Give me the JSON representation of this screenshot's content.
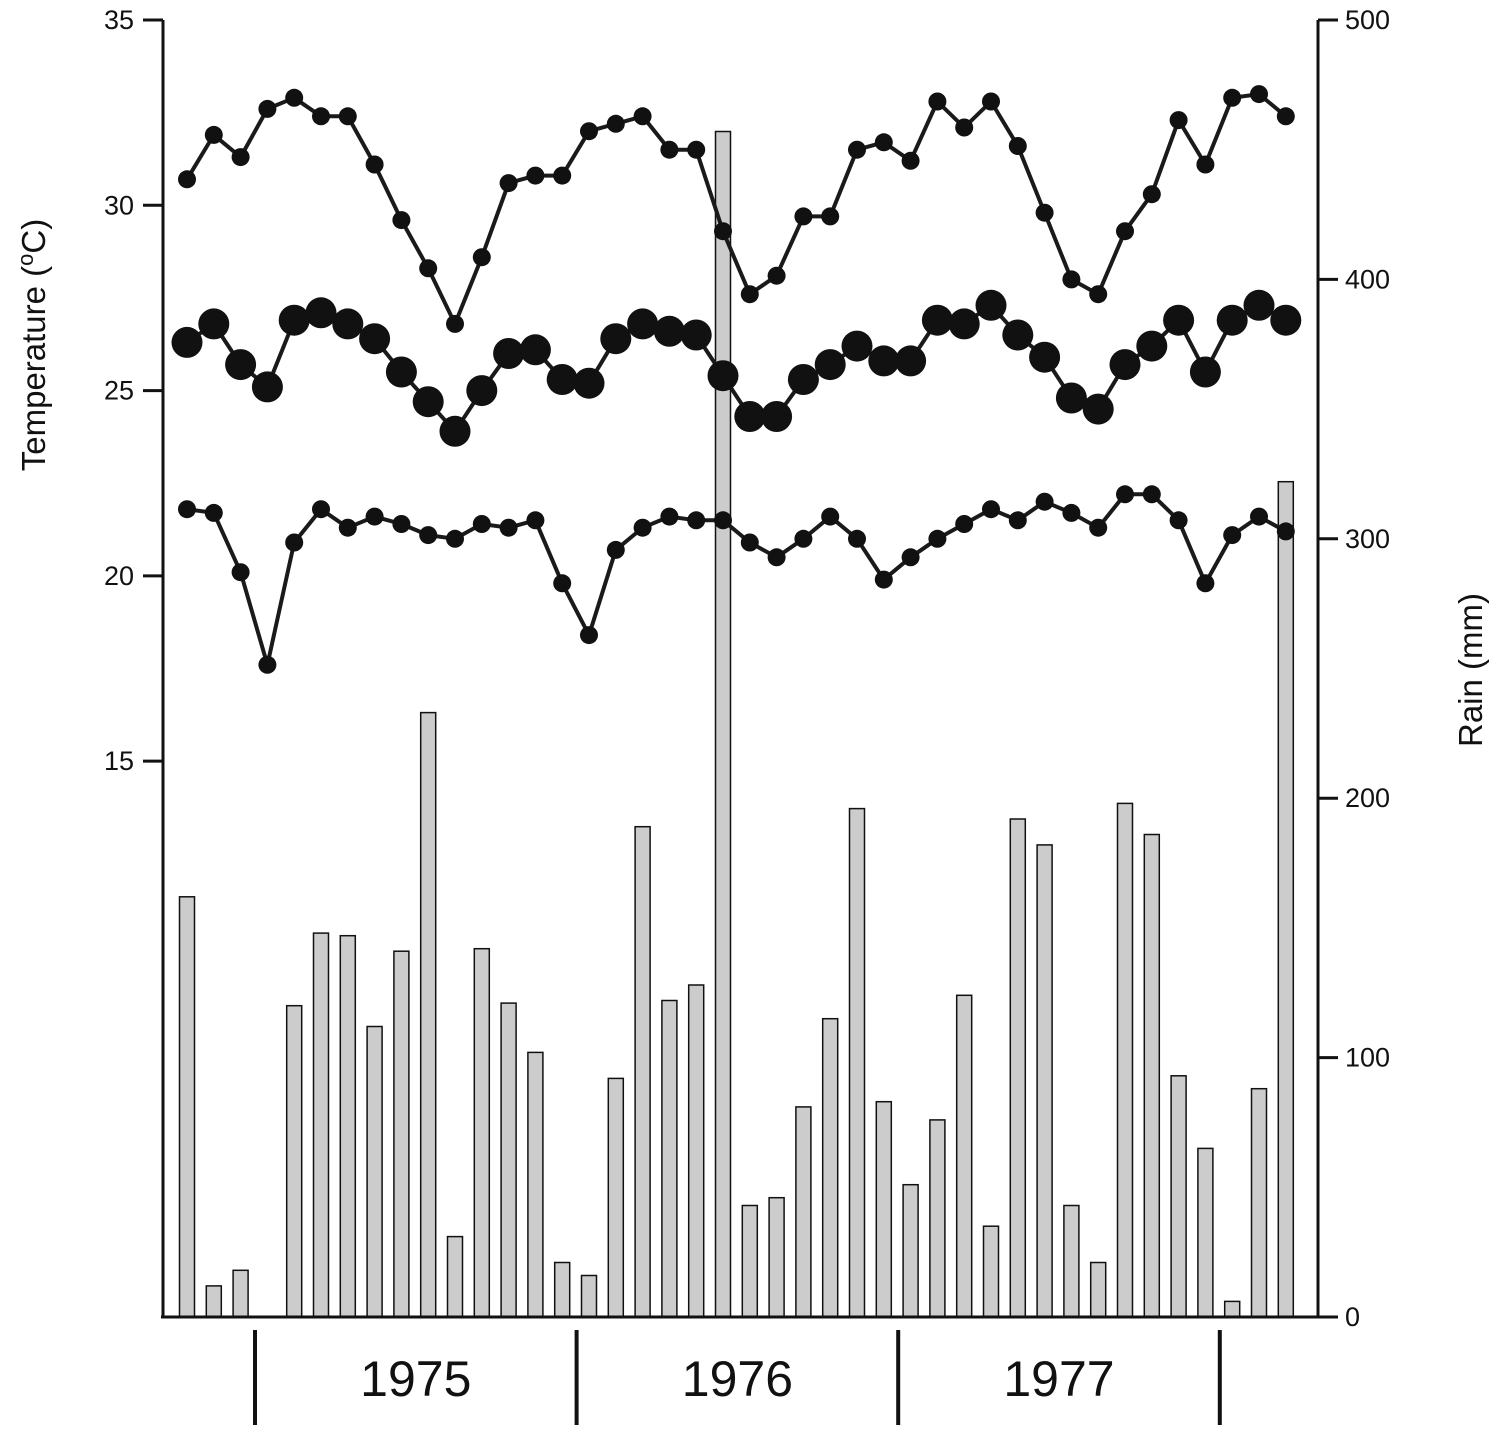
{
  "chart_data": {
    "type": "bar+line",
    "title": "",
    "ylabel_left": "Temperature (°C)",
    "ylabel_right": "Rain (mm)",
    "ylim_left": [
      0,
      35
    ],
    "yticks_left": [
      15,
      20,
      25,
      30,
      35
    ],
    "ylim_right": [
      0,
      500
    ],
    "yticks_right": [
      0,
      100,
      200,
      300,
      400,
      500
    ],
    "grid": false,
    "years": [
      "1975",
      "1976",
      "1977"
    ],
    "colors": {
      "bar_fill": "#cccccc",
      "bar_stroke": "#111111",
      "line": "#1a1a1a",
      "marker": "#111111"
    },
    "series": [
      {
        "type": "line",
        "axis": "left",
        "values": [
          30.7,
          31.9,
          31.3,
          32.6,
          32.9,
          32.4,
          32.4,
          31.1,
          29.6,
          28.3,
          26.8,
          28.6,
          30.6,
          30.8,
          30.8,
          32.0,
          32.2,
          32.4,
          31.5,
          31.5,
          29.3,
          27.6,
          28.1,
          29.7,
          29.7,
          31.5,
          31.7,
          31.2,
          32.8,
          32.1,
          32.8,
          31.6,
          29.8,
          28.0,
          27.6,
          29.3,
          30.3,
          32.3,
          31.1,
          32.9,
          33.0,
          32.4
        ]
      },
      {
        "type": "line",
        "axis": "left",
        "values": [
          26.3,
          26.8,
          25.7,
          25.1,
          26.9,
          27.1,
          26.8,
          26.4,
          25.5,
          24.7,
          23.9,
          25.0,
          26.0,
          26.1,
          25.3,
          25.2,
          26.4,
          26.8,
          26.6,
          26.5,
          25.4,
          24.3,
          24.3,
          25.3,
          25.7,
          26.2,
          25.8,
          25.8,
          26.9,
          26.8,
          27.3,
          26.5,
          25.9,
          24.8,
          24.5,
          25.7,
          26.2,
          26.9,
          25.5,
          26.9,
          27.3,
          26.9
        ]
      },
      {
        "type": "line",
        "axis": "left",
        "values": [
          21.8,
          21.7,
          20.1,
          17.6,
          20.9,
          21.8,
          21.3,
          21.6,
          21.4,
          21.1,
          21.0,
          21.4,
          21.3,
          21.5,
          19.8,
          18.4,
          20.7,
          21.3,
          21.6,
          21.5,
          21.5,
          20.9,
          20.5,
          21.0,
          21.6,
          21.0,
          19.9,
          20.5,
          21.0,
          21.4,
          21.8,
          21.5,
          22.0,
          21.7,
          21.3,
          22.2,
          22.2,
          21.5,
          19.8,
          21.1,
          21.6,
          21.2
        ]
      },
      {
        "type": "bar",
        "axis": "right",
        "values": [
          162,
          12,
          18,
          0,
          120,
          148,
          147,
          112,
          141,
          233,
          31,
          142,
          121,
          102,
          21,
          16,
          92,
          189,
          122,
          128,
          457,
          43,
          46,
          81,
          115,
          196,
          83,
          51,
          76,
          124,
          35,
          192,
          182,
          43,
          21,
          198,
          186,
          93,
          65,
          6,
          88,
          322
        ]
      }
    ]
  }
}
